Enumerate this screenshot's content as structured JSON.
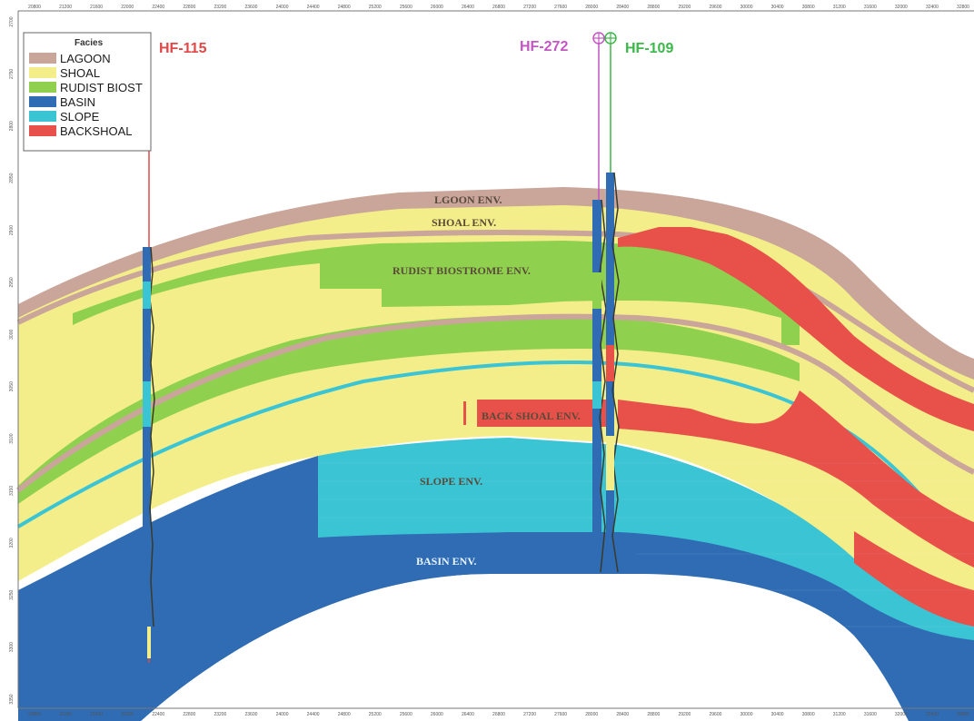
{
  "legend": {
    "title": "Facies",
    "items": [
      {
        "label": "LAGOON",
        "color": "#c9a59a"
      },
      {
        "label": "SHOAL",
        "color": "#f4ee8a"
      },
      {
        "label": "RUDIST BIOST",
        "color": "#8fd14f"
      },
      {
        "label": "BASIN",
        "color": "#2f6cb3"
      },
      {
        "label": "SLOPE",
        "color": "#3bc4d4"
      },
      {
        "label": "BACKSHOAL",
        "color": "#e8504a"
      }
    ]
  },
  "wells": [
    {
      "name": "HF-115",
      "color": "#e04848"
    },
    {
      "name": "HF-272",
      "color": "#c455c4"
    },
    {
      "name": "HF-109",
      "color": "#3cb84a"
    }
  ],
  "environment_labels": {
    "lagoon": "LGOON ENV.",
    "shoal": "SHOAL ENV.",
    "rudist": "RUDIST BIOSTROME ENV.",
    "backshoal": "BACK SHOAL ENV.",
    "slope": "SLOPE ENV.",
    "basin": "BASIN ENV."
  },
  "x_axis_ticks": [
    "20800",
    "21200",
    "21600",
    "22000",
    "22400",
    "22800",
    "23200",
    "23600",
    "24000",
    "24400",
    "24800",
    "25200",
    "25600",
    "26000",
    "26400",
    "26800",
    "27200",
    "27600",
    "28000",
    "28400",
    "28800",
    "29200",
    "29600",
    "30000",
    "30400",
    "30800",
    "31200",
    "31600",
    "32000",
    "32400",
    "32800"
  ],
  "y_axis_ticks": [
    "2700",
    "2750",
    "2800",
    "2850",
    "2900",
    "2950",
    "3000",
    "3050",
    "3100",
    "3150",
    "3200",
    "3250",
    "3300",
    "3350"
  ]
}
